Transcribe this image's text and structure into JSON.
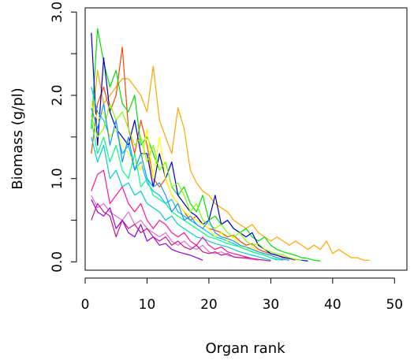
{
  "chart_data": {
    "type": "line",
    "xlabel": "Organ rank",
    "ylabel": "Biomass (g/pl)",
    "xlim": [
      0,
      52
    ],
    "ylim": [
      -0.1,
      3.05
    ],
    "xticks": [
      0,
      10,
      20,
      30,
      40,
      50
    ],
    "xtick_labels": [
      "0",
      "10",
      "20",
      "30",
      "40",
      "50"
    ],
    "yticks": [
      0.0,
      0.5,
      1.0,
      1.5,
      2.0,
      2.5,
      3.0
    ],
    "ytick_labels": [
      "0.0",
      "",
      "1.0",
      "",
      "2.0",
      "",
      "3.0"
    ],
    "grid": false,
    "legend": "none",
    "series": [
      {
        "color": "#FFA500",
        "x": [
          1,
          2,
          3,
          4,
          5,
          6,
          7,
          8,
          9,
          10,
          11,
          12,
          13,
          14,
          15,
          16,
          17,
          18,
          19,
          20,
          21,
          22,
          23,
          24,
          25,
          26,
          27,
          28,
          29,
          30,
          31,
          32,
          33,
          34,
          35,
          36,
          37,
          38,
          39,
          40,
          41,
          42,
          43,
          44,
          45,
          46
        ],
        "y": [
          1.6,
          2.3,
          1.9,
          2.0,
          2.1,
          2.2,
          2.2,
          2.1,
          2.0,
          1.8,
          2.35,
          1.7,
          1.5,
          1.3,
          1.85,
          1.6,
          1.1,
          0.95,
          0.85,
          0.8,
          0.7,
          0.65,
          0.6,
          0.5,
          0.45,
          0.4,
          0.45,
          0.35,
          0.3,
          0.25,
          0.3,
          0.25,
          0.2,
          0.25,
          0.2,
          0.15,
          0.2,
          0.15,
          0.25,
          0.1,
          0.15,
          0.1,
          0.05,
          0.05,
          0.02,
          0.02
        ]
      },
      {
        "color": "#FF4500",
        "x": [
          1,
          2,
          3,
          4,
          5,
          6,
          7,
          8,
          9,
          10,
          11,
          12,
          13,
          14,
          15,
          16,
          17,
          18,
          19,
          20,
          21,
          22,
          23,
          24,
          25,
          26,
          27,
          28,
          29,
          30,
          31,
          32,
          33,
          34
        ],
        "y": [
          1.3,
          1.9,
          2.1,
          1.8,
          2.0,
          2.58,
          1.6,
          1.3,
          1.7,
          1.4,
          1.0,
          0.9,
          1.0,
          0.8,
          0.7,
          0.6,
          0.5,
          0.55,
          0.45,
          0.4,
          0.38,
          0.35,
          0.3,
          0.32,
          0.25,
          0.2,
          0.22,
          0.15,
          0.12,
          0.1,
          0.08,
          0.06,
          0.04,
          0.02
        ]
      },
      {
        "color": "#00E000",
        "x": [
          1,
          2,
          3,
          4,
          5,
          6,
          7,
          8,
          9,
          10,
          11,
          12,
          13,
          14,
          15,
          16,
          17,
          18,
          19,
          20,
          21,
          22,
          23,
          24,
          25,
          26,
          27,
          28,
          29,
          30,
          31,
          32,
          33,
          34,
          35,
          36,
          37,
          38
        ],
        "y": [
          1.6,
          2.8,
          2.4,
          2.1,
          2.3,
          1.9,
          1.8,
          2.0,
          1.4,
          1.5,
          1.3,
          1.1,
          1.2,
          0.9,
          0.8,
          0.9,
          0.7,
          0.6,
          0.8,
          0.5,
          0.55,
          0.45,
          0.5,
          0.4,
          0.35,
          0.4,
          0.3,
          0.25,
          0.3,
          0.2,
          0.15,
          0.12,
          0.1,
          0.08,
          0.05,
          0.04,
          0.02,
          0.01
        ]
      },
      {
        "color": "#0000CD",
        "x": [
          1,
          2,
          3,
          4,
          5,
          6,
          7,
          8,
          9,
          10,
          11,
          12,
          13,
          14,
          15,
          16,
          17,
          18,
          19,
          20,
          21,
          22,
          23,
          24,
          25,
          26,
          27,
          28,
          29,
          30,
          31,
          32,
          33,
          34,
          35,
          36
        ],
        "y": [
          2.75,
          1.4,
          2.45,
          1.8,
          1.6,
          1.5,
          1.4,
          1.7,
          1.3,
          1.3,
          0.9,
          1.3,
          1.0,
          1.2,
          0.8,
          0.7,
          0.6,
          0.55,
          0.45,
          0.5,
          0.8,
          0.45,
          0.5,
          0.4,
          0.35,
          0.3,
          0.35,
          0.2,
          0.15,
          0.1,
          0.08,
          0.05,
          0.04,
          0.03,
          0.02,
          0.01
        ]
      },
      {
        "color": "#00BFFF",
        "x": [
          1,
          2,
          3,
          4,
          5,
          6,
          7,
          8,
          9,
          10,
          11,
          12,
          13,
          14,
          15,
          16,
          17,
          18,
          19,
          20,
          21,
          22,
          23,
          24,
          25,
          26,
          27,
          28,
          29,
          30,
          31,
          32
        ],
        "y": [
          2.1,
          1.8,
          1.7,
          1.5,
          1.6,
          1.3,
          1.4,
          1.1,
          1.2,
          0.95,
          0.85,
          0.8,
          0.7,
          0.75,
          0.6,
          0.55,
          0.5,
          0.45,
          0.4,
          0.35,
          0.3,
          0.28,
          0.25,
          0.22,
          0.18,
          0.15,
          0.12,
          0.1,
          0.08,
          0.05,
          0.03,
          0.02
        ]
      },
      {
        "color": "#FFFF00",
        "x": [
          1,
          2,
          3,
          4,
          5,
          6,
          7,
          8,
          9,
          10,
          11,
          12,
          13,
          14,
          15,
          16,
          17,
          18,
          19,
          20,
          21,
          22,
          23,
          24,
          25,
          26,
          27,
          28,
          29,
          30,
          31,
          32
        ],
        "y": [
          1.9,
          1.7,
          1.8,
          1.5,
          1.6,
          1.4,
          1.3,
          1.2,
          1.1,
          1.6,
          1.0,
          1.5,
          1.0,
          0.8,
          0.7,
          0.6,
          0.55,
          0.5,
          0.45,
          0.4,
          0.3,
          0.35,
          0.25,
          0.3,
          0.2,
          0.15,
          0.18,
          0.12,
          0.1,
          0.08,
          0.05,
          0.03
        ]
      },
      {
        "color": "#00FF7F",
        "x": [
          1,
          2,
          3,
          4,
          5,
          6,
          7,
          8,
          9,
          10,
          11,
          12,
          13,
          14,
          15,
          16,
          17,
          18,
          19,
          20,
          21,
          22,
          23,
          24,
          25,
          26,
          27,
          28,
          29,
          30,
          31
        ],
        "y": [
          1.7,
          1.3,
          1.5,
          1.2,
          1.4,
          1.1,
          1.0,
          1.3,
          0.9,
          1.0,
          0.8,
          0.75,
          0.7,
          0.6,
          0.55,
          0.5,
          0.45,
          0.4,
          0.35,
          0.3,
          0.28,
          0.25,
          0.22,
          0.2,
          0.18,
          0.15,
          0.12,
          0.1,
          0.08,
          0.05,
          0.02
        ]
      },
      {
        "color": "#00CED1",
        "x": [
          1,
          2,
          3,
          4,
          5,
          6,
          7,
          8,
          9,
          10,
          11,
          12,
          13,
          14,
          15,
          16,
          17,
          18,
          19,
          20,
          21,
          22,
          23,
          24,
          25,
          26,
          27,
          28,
          29,
          30
        ],
        "y": [
          1.5,
          1.2,
          1.4,
          1.0,
          1.1,
          0.9,
          0.95,
          0.8,
          0.85,
          0.7,
          0.65,
          0.6,
          0.5,
          0.55,
          0.45,
          0.4,
          0.35,
          0.3,
          0.28,
          0.25,
          0.22,
          0.2,
          0.18,
          0.15,
          0.12,
          0.1,
          0.08,
          0.06,
          0.04,
          0.02
        ]
      },
      {
        "color": "#FF1493",
        "x": [
          1,
          2,
          3,
          4,
          5,
          6,
          7,
          8,
          9,
          10,
          11,
          12,
          13,
          14,
          15,
          16,
          17,
          18,
          19,
          20,
          21,
          22,
          23,
          24,
          25,
          26,
          27,
          28,
          29
        ],
        "y": [
          0.85,
          1.05,
          1.1,
          0.7,
          0.8,
          0.9,
          0.7,
          0.6,
          0.7,
          0.5,
          0.4,
          0.5,
          0.45,
          0.35,
          0.3,
          0.35,
          0.25,
          0.2,
          0.3,
          0.2,
          0.15,
          0.18,
          0.12,
          0.1,
          0.08,
          0.06,
          0.04,
          0.03,
          0.02
        ]
      },
      {
        "color": "#DA70D6",
        "x": [
          1,
          2,
          3,
          4,
          5,
          6,
          7,
          8,
          9,
          10,
          11,
          12,
          13,
          14,
          15,
          16,
          17,
          18,
          19,
          20,
          21,
          22,
          23,
          24,
          25,
          26,
          27,
          28
        ],
        "y": [
          0.8,
          0.65,
          0.7,
          0.6,
          0.55,
          0.5,
          0.6,
          0.45,
          0.5,
          0.4,
          0.35,
          0.3,
          0.35,
          0.25,
          0.2,
          0.25,
          0.18,
          0.15,
          0.2,
          0.12,
          0.1,
          0.12,
          0.08,
          0.06,
          0.05,
          0.04,
          0.03,
          0.02
        ]
      },
      {
        "color": "#C71585",
        "x": [
          1,
          2,
          3,
          4,
          5,
          6,
          7,
          8,
          9,
          10,
          11,
          12,
          13,
          14,
          15,
          16,
          17,
          18,
          19,
          20,
          21,
          22,
          23,
          24,
          25,
          26,
          27,
          28,
          29,
          30
        ],
        "y": [
          0.5,
          0.7,
          0.6,
          0.55,
          0.3,
          0.5,
          0.4,
          0.45,
          0.35,
          0.4,
          0.3,
          0.25,
          0.3,
          0.2,
          0.25,
          0.18,
          0.15,
          0.2,
          0.12,
          0.1,
          0.12,
          0.08,
          0.1,
          0.06,
          0.05,
          0.05,
          0.04,
          0.03,
          0.02,
          0.01
        ]
      },
      {
        "color": "#9400D3",
        "x": [
          1,
          2,
          3,
          4,
          5,
          6,
          7,
          8,
          9,
          10,
          11,
          12,
          13,
          14,
          15,
          16,
          17,
          18,
          19
        ],
        "y": [
          0.75,
          0.6,
          0.55,
          0.65,
          0.4,
          0.5,
          0.35,
          0.3,
          0.45,
          0.25,
          0.3,
          0.2,
          0.22,
          0.15,
          0.12,
          0.1,
          0.08,
          0.05,
          0.02
        ]
      },
      {
        "color": "#7FFF00",
        "x": [
          1,
          2,
          3,
          4,
          5,
          6,
          7,
          8,
          9,
          10,
          11,
          12,
          13,
          14,
          15,
          16,
          17,
          18,
          19,
          20,
          21,
          22,
          23,
          24,
          25,
          26,
          27,
          28,
          29,
          30,
          31,
          32,
          33,
          34,
          35
        ],
        "y": [
          1.75,
          1.5,
          1.6,
          1.9,
          1.7,
          1.8,
          1.6,
          1.4,
          1.5,
          1.2,
          1.4,
          1.1,
          1.2,
          0.9,
          0.95,
          0.8,
          0.6,
          0.7,
          0.5,
          0.45,
          0.4,
          0.45,
          0.35,
          0.3,
          0.35,
          0.25,
          0.2,
          0.22,
          0.15,
          0.12,
          0.1,
          0.08,
          0.05,
          0.03,
          0.02
        ]
      },
      {
        "color": "#1E90FF",
        "x": [
          1,
          2,
          3,
          4,
          5,
          6,
          7,
          8,
          9,
          10,
          11,
          12,
          13,
          14,
          15,
          16,
          17,
          18,
          19,
          20,
          21,
          22,
          23,
          24,
          25,
          26,
          27,
          28,
          29,
          30,
          31,
          32,
          33
        ],
        "y": [
          1.85,
          1.6,
          1.9,
          1.4,
          1.7,
          1.2,
          1.5,
          1.1,
          1.3,
          1.0,
          0.9,
          0.95,
          0.8,
          0.6,
          0.7,
          0.5,
          0.55,
          0.45,
          0.4,
          0.5,
          0.35,
          0.3,
          0.28,
          0.25,
          0.2,
          0.18,
          0.15,
          0.12,
          0.1,
          0.08,
          0.05,
          0.03,
          0.02
        ]
      }
    ]
  }
}
